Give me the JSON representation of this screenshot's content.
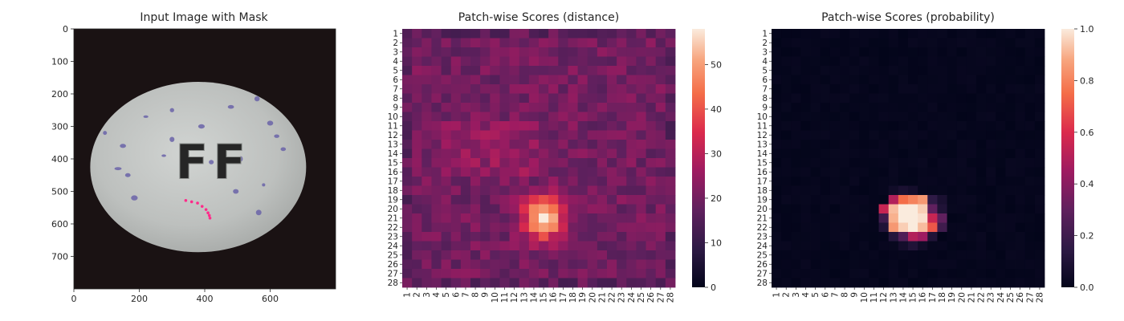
{
  "chart_data": [
    {
      "type": "image",
      "title": "Input Image with Mask",
      "xlabel": "",
      "ylabel": "",
      "xlim": [
        0,
        800
      ],
      "ylim": [
        800,
        0
      ],
      "xticks": [
        0,
        200,
        400,
        600
      ],
      "yticks": [
        0,
        100,
        200,
        300,
        400,
        500,
        600,
        700
      ],
      "colors": {
        "background": "#1a1213",
        "pill": "#bfc2c0",
        "speckle": "#6a63a8",
        "mask": "#ff2b8a"
      },
      "pill_text": "FF",
      "mask_points": [
        [
          342,
          528
        ],
        [
          360,
          532
        ],
        [
          378,
          536
        ],
        [
          392,
          546
        ],
        [
          404,
          556
        ],
        [
          410,
          566
        ],
        [
          414,
          574
        ],
        [
          416,
          582
        ]
      ]
    },
    {
      "type": "heatmap",
      "title": "Patch-wise Scores (distance)",
      "xlabel": "",
      "ylabel": "",
      "grid_size": 28,
      "row_labels": [
        "1",
        "2",
        "3",
        "4",
        "5",
        "6",
        "7",
        "8",
        "9",
        "10",
        "11",
        "12",
        "13",
        "14",
        "15",
        "16",
        "17",
        "18",
        "19",
        "20",
        "21",
        "22",
        "23",
        "24",
        "25",
        "26",
        "27",
        "28"
      ],
      "col_labels": [
        "1",
        "2",
        "3",
        "4",
        "5",
        "6",
        "7",
        "8",
        "9",
        "10",
        "11",
        "12",
        "13",
        "14",
        "15",
        "16",
        "17",
        "18",
        "19",
        "20",
        "21",
        "22",
        "23",
        "24",
        "25",
        "26",
        "27",
        "28"
      ],
      "vmin": 0,
      "vmax": 58,
      "colorbar_ticks": [
        "0",
        "10",
        "20",
        "30",
        "40",
        "50"
      ],
      "colorbar_values": [
        0,
        10,
        20,
        30,
        40,
        50
      ],
      "colormap": "rocket",
      "base_value": 20,
      "hotspot": {
        "row": 21,
        "col": 15,
        "peak": 58
      }
    },
    {
      "type": "heatmap",
      "title": "Patch-wise Scores (probability)",
      "xlabel": "",
      "ylabel": "",
      "grid_size": 28,
      "row_labels": [
        "1",
        "2",
        "3",
        "4",
        "5",
        "6",
        "7",
        "8",
        "9",
        "10",
        "11",
        "12",
        "13",
        "14",
        "15",
        "16",
        "17",
        "18",
        "19",
        "20",
        "21",
        "22",
        "23",
        "24",
        "25",
        "26",
        "27",
        "28"
      ],
      "col_labels": [
        "1",
        "2",
        "3",
        "4",
        "5",
        "6",
        "7",
        "8",
        "9",
        "10",
        "11",
        "12",
        "13",
        "14",
        "15",
        "16",
        "17",
        "18",
        "19",
        "20",
        "21",
        "22",
        "23",
        "24",
        "25",
        "26",
        "27",
        "28"
      ],
      "vmin": 0.0,
      "vmax": 1.0,
      "colorbar_ticks": [
        "0.0",
        "0.2",
        "0.4",
        "0.6",
        "0.8",
        "1.0"
      ],
      "colorbar_values": [
        0.0,
        0.2,
        0.4,
        0.6,
        0.8,
        1.0
      ],
      "colormap": "rocket",
      "hot_cells": [
        [
          19,
          13,
          0.5
        ],
        [
          19,
          14,
          0.75
        ],
        [
          19,
          15,
          0.8
        ],
        [
          19,
          16,
          0.85
        ],
        [
          19,
          17,
          0.15
        ],
        [
          19,
          18,
          0.08
        ],
        [
          20,
          12,
          0.55
        ],
        [
          20,
          13,
          0.92
        ],
        [
          20,
          14,
          1.0
        ],
        [
          20,
          15,
          1.0
        ],
        [
          20,
          16,
          0.95
        ],
        [
          20,
          17,
          0.3
        ],
        [
          20,
          18,
          0.1
        ],
        [
          21,
          12,
          0.2
        ],
        [
          21,
          13,
          0.9
        ],
        [
          21,
          14,
          1.0
        ],
        [
          21,
          15,
          1.0
        ],
        [
          21,
          16,
          0.98
        ],
        [
          21,
          17,
          0.55
        ],
        [
          21,
          18,
          0.3
        ],
        [
          22,
          12,
          0.1
        ],
        [
          22,
          13,
          0.85
        ],
        [
          22,
          14,
          0.95
        ],
        [
          22,
          15,
          1.0
        ],
        [
          22,
          16,
          0.92
        ],
        [
          22,
          17,
          0.7
        ],
        [
          22,
          18,
          0.2
        ],
        [
          23,
          13,
          0.12
        ],
        [
          23,
          14,
          0.25
        ],
        [
          23,
          15,
          0.5
        ],
        [
          23,
          16,
          0.45
        ],
        [
          23,
          17,
          0.1
        ],
        [
          24,
          14,
          0.06
        ],
        [
          24,
          15,
          0.1
        ],
        [
          24,
          16,
          0.05
        ],
        [
          18,
          13,
          0.05
        ],
        [
          18,
          14,
          0.08
        ],
        [
          18,
          15,
          0.06
        ]
      ]
    }
  ]
}
